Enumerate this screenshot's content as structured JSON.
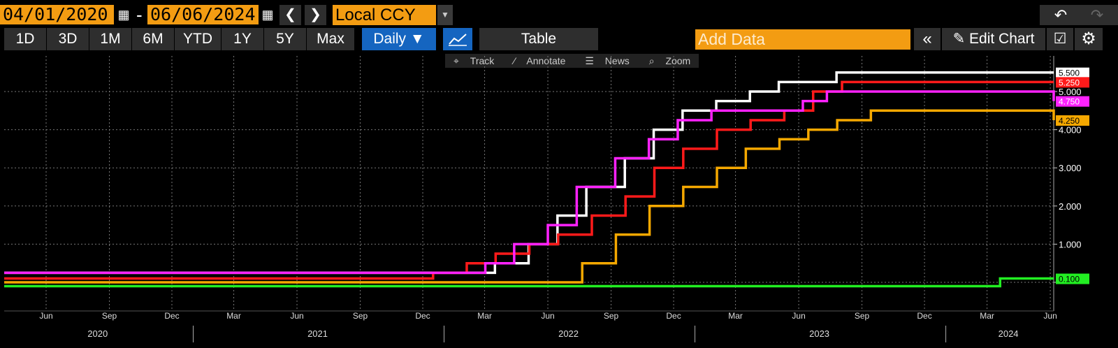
{
  "toolbar": {
    "start_date": "04/01/2020",
    "dash": "-",
    "end_date": "06/06/2024",
    "prev_icon": "chevron-left-icon",
    "next_icon": "chevron-right-icon",
    "currency": "Local CCY",
    "periods": [
      "1D",
      "3D",
      "1M",
      "6M",
      "YTD",
      "1Y",
      "5Y",
      "Max"
    ],
    "frequency": "Daily ▼",
    "table_label": "Table",
    "add_data_placeholder": "Add Data",
    "edit_chart_label": "Edit Chart",
    "sub_tools": [
      "Track",
      "Annotate",
      "News",
      "Zoom"
    ]
  },
  "chart_data": {
    "type": "line",
    "background": "#000000",
    "grid": true,
    "ylim": [
      -0.5,
      6.0
    ],
    "yticks": [
      0,
      1,
      2,
      3,
      4,
      5
    ],
    "ytick_labels": [
      "",
      "1.000",
      "2.000",
      "3.000",
      "4.000",
      "5.000"
    ],
    "xlim": [
      "2020-04-01",
      "2024-06-06"
    ],
    "x_month_ticks": [
      {
        "label": "Jun",
        "date": "2020-06-01"
      },
      {
        "label": "Sep",
        "date": "2020-09-01"
      },
      {
        "label": "Dec",
        "date": "2020-12-01"
      },
      {
        "label": "Mar",
        "date": "2021-03-01"
      },
      {
        "label": "Jun",
        "date": "2021-06-01"
      },
      {
        "label": "Sep",
        "date": "2021-09-01"
      },
      {
        "label": "Dec",
        "date": "2021-12-01"
      },
      {
        "label": "Mar",
        "date": "2022-03-01"
      },
      {
        "label": "Jun",
        "date": "2022-06-01"
      },
      {
        "label": "Sep",
        "date": "2022-09-01"
      },
      {
        "label": "Dec",
        "date": "2022-12-01"
      },
      {
        "label": "Mar",
        "date": "2023-03-01"
      },
      {
        "label": "Jun",
        "date": "2023-06-01"
      },
      {
        "label": "Sep",
        "date": "2023-09-01"
      },
      {
        "label": "Dec",
        "date": "2023-12-01"
      },
      {
        "label": "Mar",
        "date": "2024-03-01"
      },
      {
        "label": "Jun",
        "date": "2024-06-01"
      }
    ],
    "year_labels": [
      {
        "label": "2020",
        "date": "2020-08-15"
      },
      {
        "label": "2021",
        "date": "2021-07-01"
      },
      {
        "label": "2022",
        "date": "2022-07-01"
      },
      {
        "label": "2023",
        "date": "2023-07-01"
      },
      {
        "label": "2024",
        "date": "2024-04-01"
      }
    ],
    "year_dividers": [
      "2021-01-01",
      "2022-01-01",
      "2023-01-01",
      "2024-01-01"
    ],
    "series": [
      {
        "color": "#ffffff",
        "last_label": "5.500",
        "points": [
          [
            "2020-04-01",
            0.25
          ],
          [
            "2022-03-16",
            0.5
          ],
          [
            "2022-05-04",
            1.0
          ],
          [
            "2022-06-15",
            1.75
          ],
          [
            "2022-07-27",
            2.5
          ],
          [
            "2022-09-21",
            3.25
          ],
          [
            "2022-11-02",
            4.0
          ],
          [
            "2022-12-14",
            4.5
          ],
          [
            "2023-02-01",
            4.75
          ],
          [
            "2023-03-22",
            5.0
          ],
          [
            "2023-05-03",
            5.25
          ],
          [
            "2023-07-26",
            5.5
          ],
          [
            "2024-06-06",
            5.5
          ]
        ]
      },
      {
        "color": "#ff1a1a",
        "last_label": "5.250",
        "points": [
          [
            "2020-04-01",
            0.1
          ],
          [
            "2021-12-16",
            0.25
          ],
          [
            "2022-02-03",
            0.5
          ],
          [
            "2022-03-17",
            0.75
          ],
          [
            "2022-05-05",
            1.0
          ],
          [
            "2022-06-16",
            1.25
          ],
          [
            "2022-08-04",
            1.75
          ],
          [
            "2022-09-22",
            2.25
          ],
          [
            "2022-11-03",
            3.0
          ],
          [
            "2022-12-15",
            3.5
          ],
          [
            "2023-02-02",
            4.0
          ],
          [
            "2023-03-23",
            4.25
          ],
          [
            "2023-05-11",
            4.5
          ],
          [
            "2023-06-22",
            5.0
          ],
          [
            "2023-08-03",
            5.25
          ],
          [
            "2024-06-06",
            5.25
          ]
        ]
      },
      {
        "color": "#ff22ff",
        "last_label": "4.750",
        "points": [
          [
            "2020-04-01",
            0.25
          ],
          [
            "2021-12-15",
            0.25
          ],
          [
            "2022-03-02",
            0.5
          ],
          [
            "2022-04-13",
            1.0
          ],
          [
            "2022-06-01",
            1.5
          ],
          [
            "2022-07-13",
            2.5
          ],
          [
            "2022-09-07",
            3.25
          ],
          [
            "2022-10-26",
            3.75
          ],
          [
            "2022-12-07",
            4.25
          ],
          [
            "2023-01-25",
            4.5
          ],
          [
            "2023-06-07",
            4.75
          ],
          [
            "2023-07-12",
            5.0
          ],
          [
            "2024-06-05",
            5.0
          ],
          [
            "2024-06-06",
            4.75
          ]
        ]
      },
      {
        "color": "#f5a800",
        "last_label": "4.250",
        "points": [
          [
            "2020-04-01",
            0.0
          ],
          [
            "2022-07-21",
            0.5
          ],
          [
            "2022-09-08",
            1.25
          ],
          [
            "2022-10-27",
            2.0
          ],
          [
            "2022-12-15",
            2.5
          ],
          [
            "2023-02-02",
            3.0
          ],
          [
            "2023-03-16",
            3.5
          ],
          [
            "2023-05-04",
            3.75
          ],
          [
            "2023-06-15",
            4.0
          ],
          [
            "2023-07-27",
            4.25
          ],
          [
            "2023-09-14",
            4.5
          ],
          [
            "2024-06-05",
            4.5
          ],
          [
            "2024-06-06",
            4.25
          ]
        ]
      },
      {
        "color": "#22ee22",
        "last_label": "0.100",
        "points": [
          [
            "2020-04-01",
            -0.1
          ],
          [
            "2024-03-19",
            -0.1
          ],
          [
            "2024-03-20",
            0.1
          ],
          [
            "2024-06-06",
            0.1
          ]
        ]
      }
    ]
  }
}
